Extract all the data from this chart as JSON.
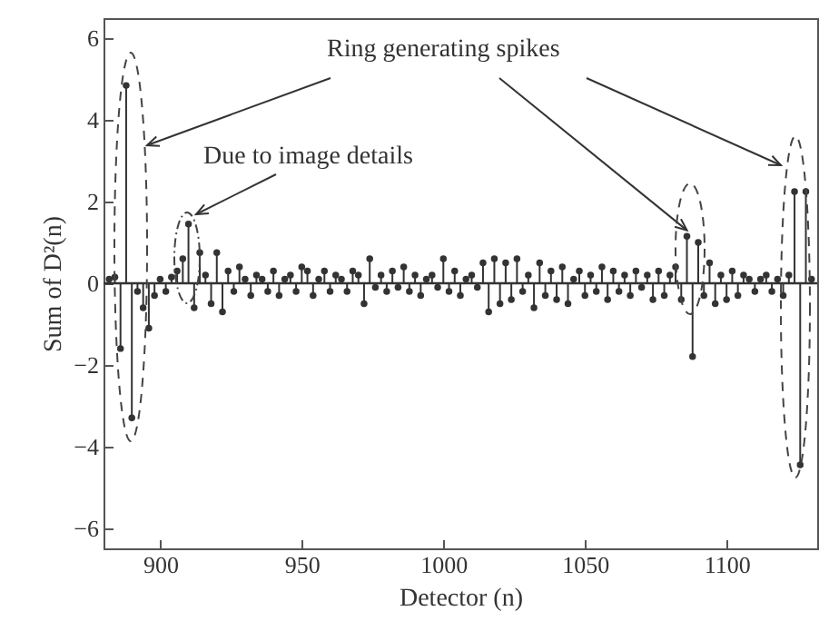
{
  "chart_data": {
    "type": "lollipop",
    "xlabel": "Detector (n)",
    "ylabel": "Sum of D²(n)",
    "annotations": [
      {
        "text": "Ring generating spikes",
        "x": 1086,
        "y": 1.3
      },
      "Due to image details"
    ],
    "x": [
      882,
      884,
      886,
      888,
      890,
      892,
      894,
      896,
      898,
      900,
      902,
      904,
      906,
      908,
      910,
      912,
      914,
      916,
      918,
      920,
      922,
      924,
      926,
      928,
      930,
      932,
      934,
      936,
      938,
      940,
      942,
      944,
      946,
      948,
      950,
      952,
      954,
      956,
      958,
      960,
      962,
      964,
      966,
      968,
      970,
      972,
      974,
      976,
      978,
      980,
      982,
      984,
      986,
      988,
      990,
      992,
      994,
      996,
      998,
      1000,
      1002,
      1004,
      1006,
      1008,
      1010,
      1012,
      1014,
      1016,
      1018,
      1020,
      1022,
      1024,
      1026,
      1028,
      1030,
      1032,
      1034,
      1036,
      1038,
      1040,
      1042,
      1044,
      1046,
      1048,
      1050,
      1052,
      1054,
      1056,
      1058,
      1060,
      1062,
      1064,
      1066,
      1068,
      1070,
      1072,
      1074,
      1076,
      1078,
      1080,
      1082,
      1084,
      1086,
      1088,
      1090,
      1092,
      1094,
      1096,
      1098,
      1100,
      1102,
      1104,
      1106,
      1108,
      1110,
      1112,
      1114,
      1116,
      1118,
      1120,
      1122,
      1124,
      1126,
      1128,
      1130
    ],
    "values": [
      0.1,
      0.15,
      -1.6,
      4.85,
      -3.3,
      -0.2,
      -0.6,
      -1.1,
      -0.3,
      0.1,
      -0.2,
      0.15,
      0.3,
      0.6,
      1.45,
      -0.6,
      0.75,
      0.2,
      -0.5,
      0.75,
      -0.7,
      0.3,
      -0.2,
      0.4,
      0.1,
      -0.3,
      0.2,
      0.1,
      -0.2,
      0.3,
      -0.3,
      0.1,
      0.2,
      -0.2,
      0.4,
      0.3,
      -0.3,
      0.1,
      0.3,
      -0.2,
      0.2,
      0.1,
      -0.2,
      0.3,
      0.2,
      -0.5,
      0.6,
      -0.1,
      0.2,
      -0.2,
      0.3,
      -0.1,
      0.4,
      -0.2,
      0.2,
      -0.3,
      0.1,
      0.2,
      -0.1,
      0.6,
      -0.2,
      0.3,
      -0.3,
      0.1,
      0.2,
      -0.1,
      0.5,
      -0.7,
      0.6,
      -0.5,
      0.5,
      -0.4,
      0.6,
      -0.2,
      0.2,
      -0.6,
      0.5,
      -0.3,
      0.3,
      -0.4,
      0.4,
      -0.5,
      0.1,
      0.3,
      -0.3,
      0.2,
      -0.2,
      0.4,
      -0.4,
      0.3,
      -0.2,
      0.2,
      -0.3,
      0.3,
      -0.1,
      0.2,
      -0.4,
      0.3,
      -0.3,
      0.2,
      0.4,
      -0.4,
      1.15,
      -1.8,
      1.0,
      -0.3,
      0.5,
      -0.5,
      0.2,
      -0.4,
      0.3,
      -0.3,
      0.2,
      0.1,
      -0.2,
      0.1,
      0.2,
      -0.2,
      0.1,
      -0.3,
      0.2,
      2.25,
      -4.45,
      2.25,
      0.1
    ],
    "color": "#333333",
    "marker": "circle",
    "ref_lines": [
      {
        "axis": "y",
        "value": 0
      }
    ],
    "xlim": [
      880,
      1132
    ],
    "xticks": [
      900,
      950,
      1000,
      1050,
      1100
    ],
    "ylim": [
      -6.5,
      6.5
    ],
    "yticks": [
      -6,
      -4,
      -2,
      0,
      2,
      4,
      6
    ]
  }
}
